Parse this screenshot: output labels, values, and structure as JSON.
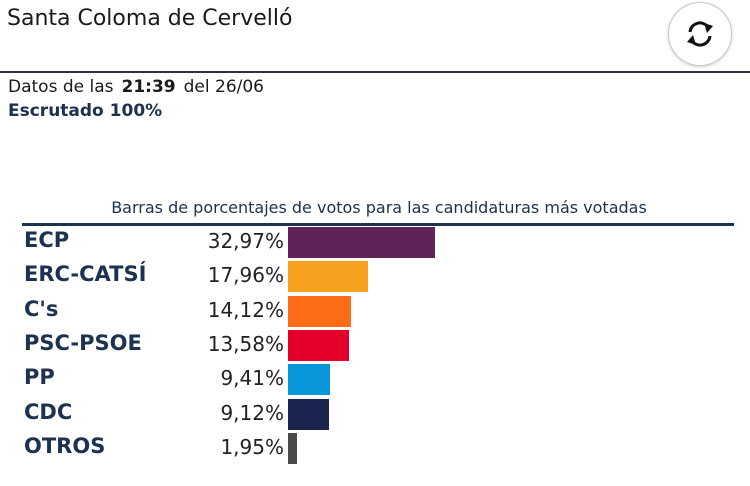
{
  "header": {
    "title": "Santa Coloma de Cervelló",
    "refresh_icon": "refresh-icon"
  },
  "status": {
    "prefix": "Datos de las",
    "time": "21:39",
    "date": "del 26/06",
    "scrutiny": "Escrutado 100%"
  },
  "chart_data": {
    "type": "bar",
    "title": "Barras de porcentajes de votos para las candidaturas más votadas",
    "orientation": "horizontal",
    "categories": [
      "ECP",
      "ERC-CATSÍ",
      "C's",
      "PSC-PSOE",
      "PP",
      "CDC",
      "OTROS"
    ],
    "values": [
      32.97,
      17.96,
      14.12,
      13.58,
      9.41,
      9.12,
      1.95
    ],
    "labels": [
      "32,97%",
      "17,96%",
      "14,12%",
      "13,58%",
      "9,41%",
      "9,12%",
      "1,95%"
    ],
    "colors": [
      "#5e2459",
      "#f6a11f",
      "#fc6c16",
      "#e4002b",
      "#0897da",
      "#1c2450",
      "#4a4a4a"
    ],
    "unit": "%",
    "xlim": [
      0,
      100
    ]
  }
}
